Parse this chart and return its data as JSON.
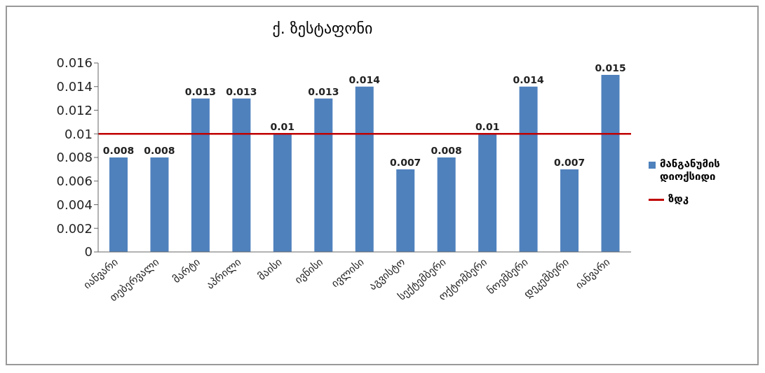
{
  "chart_data": {
    "type": "bar",
    "title": "ქ. ზესტაფონი",
    "categories": [
      "იანვარი",
      "თებერვალი",
      "მარტი",
      "აპრილი",
      "მაისი",
      "ივნისი",
      "ივლისი",
      "აგვისტო",
      "სექტემბერი",
      "ოქტომბერი",
      "ნოემბერი",
      "დეკემბერი",
      "იანვარი"
    ],
    "series": [
      {
        "name": "მანგანუმის დიოქსიდი",
        "color": "#4f81bd",
        "values": [
          0.008,
          0.008,
          0.013,
          0.013,
          0.01,
          0.013,
          0.014,
          0.007,
          0.008,
          0.01,
          0.014,
          0.007,
          0.015
        ]
      }
    ],
    "ylim": [
      0,
      0.016
    ],
    "yticks": [
      0,
      0.002,
      0.004,
      0.006,
      0.008,
      0.01,
      0.012,
      0.014,
      0.016
    ],
    "ref_lines": [
      {
        "axis": "y",
        "value": 0.01,
        "label": "ზდკ",
        "color": "#c00000"
      }
    ],
    "data_labels": true,
    "legend": "right",
    "grid": false
  }
}
